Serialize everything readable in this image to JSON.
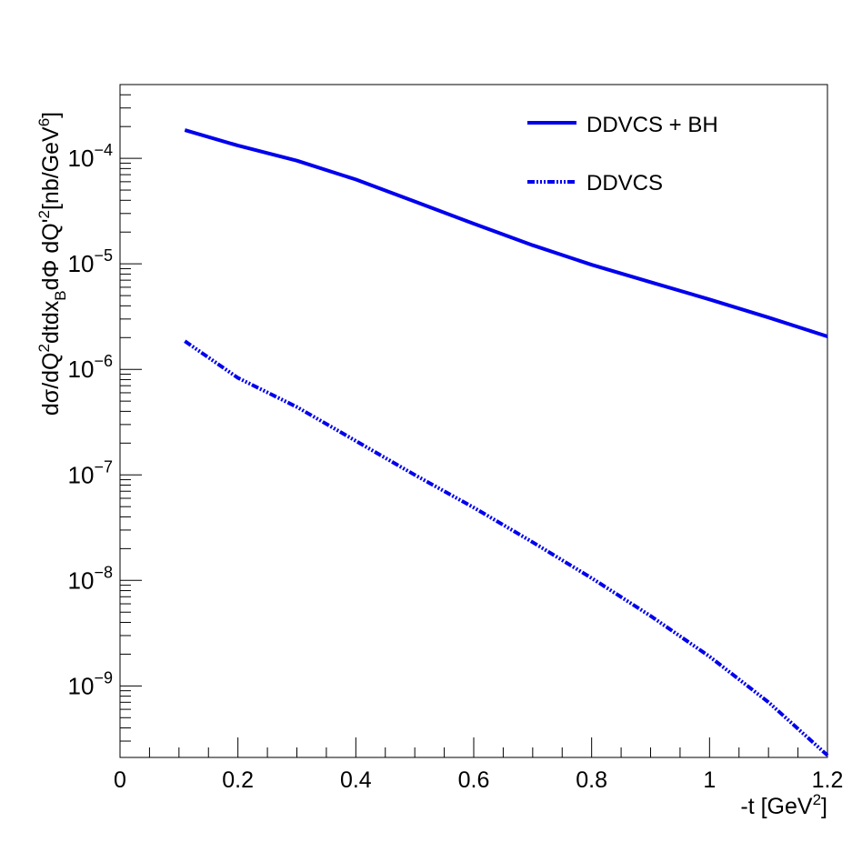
{
  "chart_data": {
    "type": "line",
    "title": "",
    "xlabel": "-t [GeV",
    "xlabel_sup": "2",
    "xlabel_end": "]",
    "ylabel_parts": {
      "p1": "dσ/dQ",
      "s1": "2",
      "p2": "dtdx",
      "b1": "B",
      "p3": "dΦ dQ'",
      "s2": "2",
      "p4": "[nb/GeV",
      "s3": "6",
      "p5": "]"
    },
    "xlim": [
      0,
      1.2
    ],
    "ylim": [
      2.1e-10,
      0.0005
    ],
    "yscale": "log",
    "grid": false,
    "legend_position": "top-right",
    "x_tick_labels": [
      {
        "v": 0,
        "label": "0"
      },
      {
        "v": 0.2,
        "label": "0.2"
      },
      {
        "v": 0.4,
        "label": "0.4"
      },
      {
        "v": 0.6,
        "label": "0.6"
      },
      {
        "v": 0.8,
        "label": "0.8"
      },
      {
        "v": 1.0,
        "label": "1"
      },
      {
        "v": 1.2,
        "label": "1.2"
      }
    ],
    "y_tick_labels": [
      {
        "exp": -9,
        "base": "10",
        "sup": "−9"
      },
      {
        "exp": -8,
        "base": "10",
        "sup": "−8"
      },
      {
        "exp": -7,
        "base": "10",
        "sup": "−7"
      },
      {
        "exp": -6,
        "base": "10",
        "sup": "−6"
      },
      {
        "exp": -5,
        "base": "10",
        "sup": "−5"
      },
      {
        "exp": -4,
        "base": "10",
        "sup": "−4"
      }
    ],
    "series": [
      {
        "name": "DDVCS + BH",
        "style": "solid",
        "color": "#0000ee",
        "x": [
          0.11,
          0.2,
          0.3,
          0.4,
          0.5,
          0.6,
          0.7,
          0.8,
          0.9,
          1.0,
          1.1,
          1.2
        ],
        "y": [
          0.000185,
          0.000132,
          9.5e-05,
          6.3e-05,
          3.9e-05,
          2.4e-05,
          1.5e-05,
          9.8e-06,
          6.7e-06,
          4.6e-06,
          3.1e-06,
          2.05e-06
        ]
      },
      {
        "name": "DDVCS",
        "style": "dash-dot",
        "color": "#0000ee",
        "x": [
          0.11,
          0.2,
          0.3,
          0.4,
          0.5,
          0.6,
          0.7,
          0.8,
          0.9,
          1.0,
          1.1,
          1.2
        ],
        "y": [
          1.85e-06,
          8.3e-07,
          4.4e-07,
          2.1e-07,
          1e-07,
          4.9e-08,
          2.3e-08,
          1.05e-08,
          4.6e-09,
          1.9e-09,
          7e-10,
          2.2e-10
        ]
      }
    ]
  }
}
